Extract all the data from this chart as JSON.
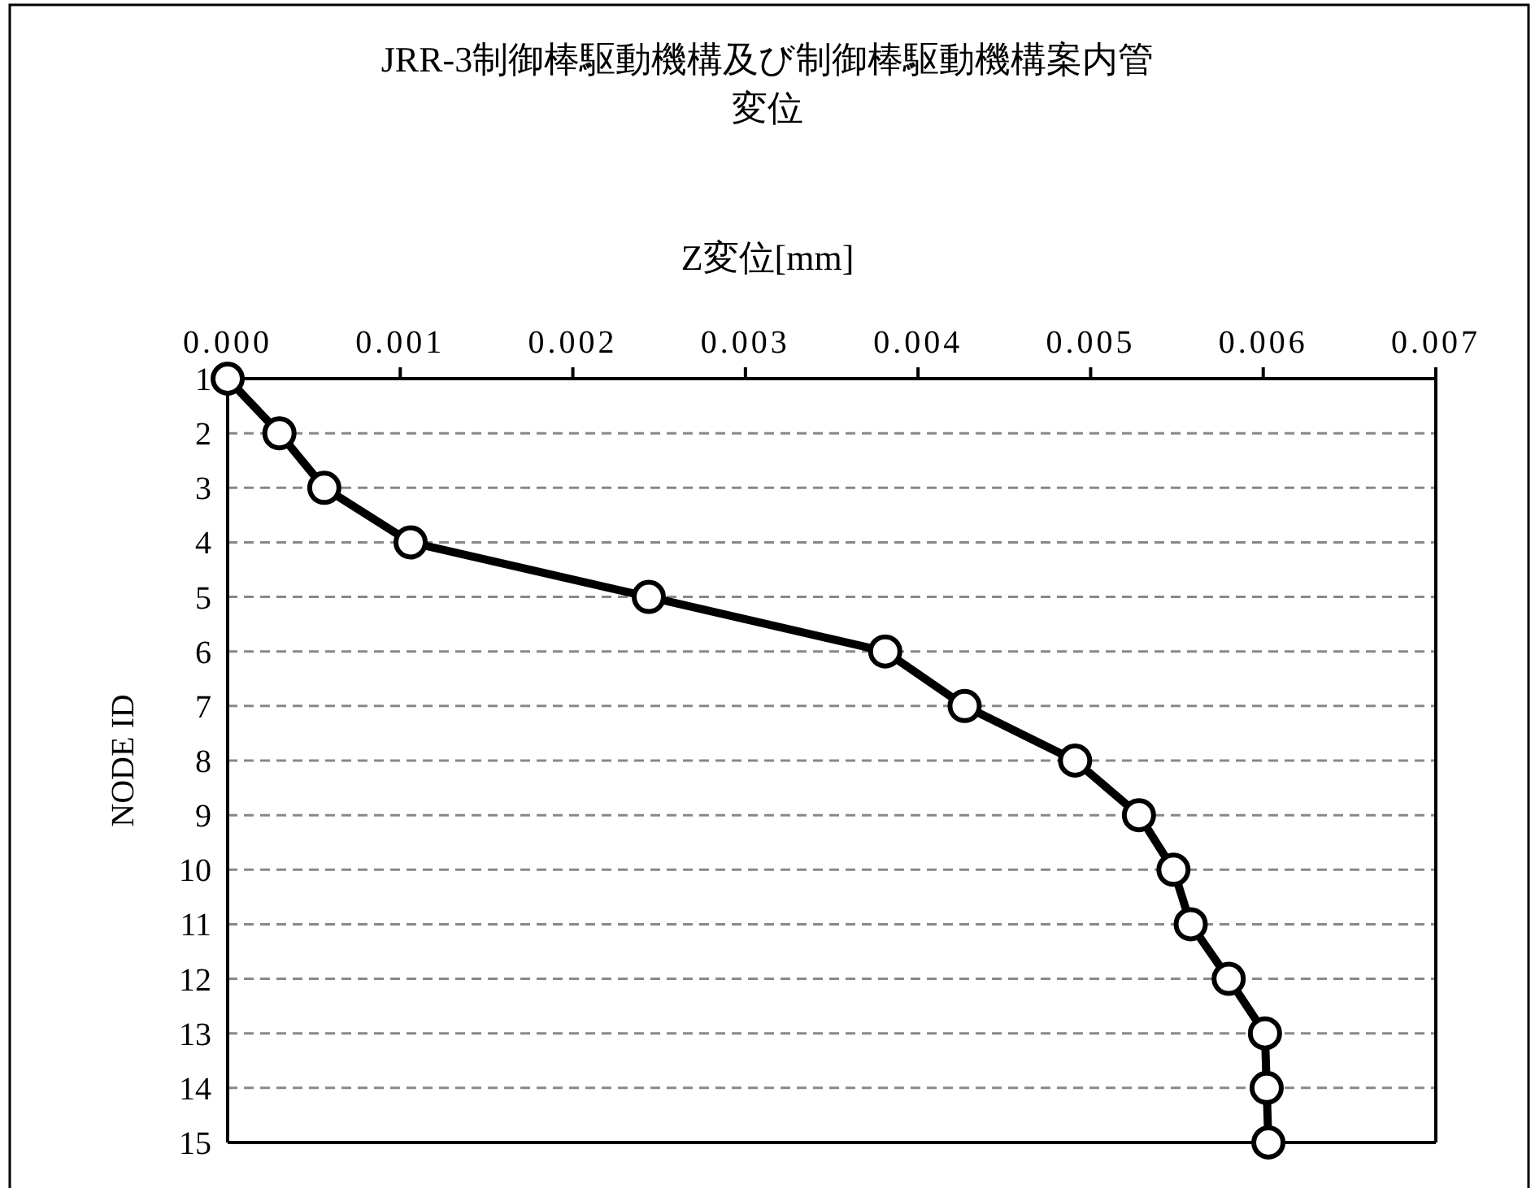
{
  "chart_data": {
    "type": "line",
    "title": "JRR-3制御棒駆動機構及び制御棒駆動機構案内管",
    "subtitle": "変位",
    "xlabel": "Z変位[mm]",
    "ylabel": "NODE ID",
    "x": [
      0,
      0.0003,
      0.00056,
      0.00106,
      0.00244,
      0.00381,
      0.00427,
      0.00491,
      0.00528,
      0.00548,
      0.00558,
      0.0058,
      0.00601,
      0.00602,
      0.00603
    ],
    "series": [
      {
        "color": "#000000",
        "values": [
          1,
          2,
          3,
          4,
          5,
          6,
          7,
          8,
          9,
          10,
          11,
          12,
          13,
          14,
          15
        ]
      }
    ],
    "xlim": [
      0,
      0.007
    ],
    "xticks": [
      {
        "value": 0,
        "label": "0.000"
      },
      {
        "value": 0.001,
        "label": "0.001"
      },
      {
        "value": 0.002,
        "label": "0.002"
      },
      {
        "value": 0.003,
        "label": "0.003"
      },
      {
        "value": 0.004,
        "label": "0.004"
      },
      {
        "value": 0.005,
        "label": "0.005"
      },
      {
        "value": 0.006,
        "label": "0.006"
      },
      {
        "value": 0.007,
        "label": "0.007"
      }
    ],
    "ylim": [
      15,
      1
    ],
    "yticks": [
      1,
      2,
      3,
      4,
      5,
      6,
      7,
      8,
      9,
      10,
      11,
      12,
      13,
      14,
      15
    ],
    "grid": "y",
    "marker": "circle",
    "line_style": "solid"
  }
}
